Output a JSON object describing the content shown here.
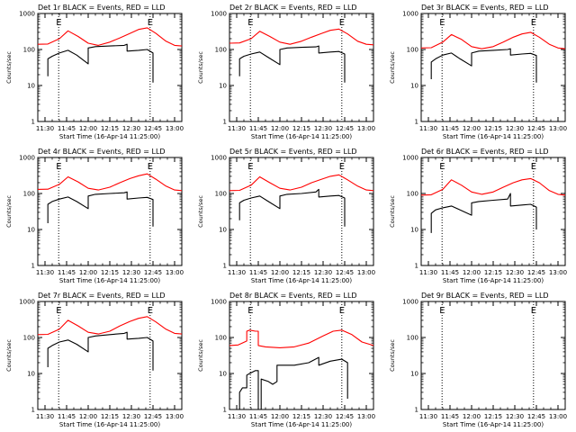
{
  "figure": {
    "ylabel": "Counts/sec",
    "xlabel": "Start Time (16-Apr-14 11:25:00)",
    "x_tick_labels": [
      "11:30",
      "11:45",
      "12:00",
      "12:15",
      "12:30",
      "12:45",
      "13:00"
    ],
    "y_tick_labels": [
      "1",
      "10",
      "100",
      "1000"
    ],
    "marker_label": "E",
    "colors": {
      "events": "#000000",
      "lld": "#ff0000",
      "frame": "#000000",
      "marker_line": "#000000"
    }
  },
  "chart_data": [
    {
      "type": "line",
      "title": "Det 1r BLACK = Events, RED = LLD",
      "xlabel": "Start Time (16-Apr-14 11:25:00)",
      "ylabel": "Counts/sec",
      "x_unit": "minutes after 11:25",
      "xlim": [
        0,
        100
      ],
      "ylim": [
        1,
        1000
      ],
      "yscale": "log",
      "x_ticks": [
        5,
        20,
        35,
        50,
        65,
        80,
        95
      ],
      "markers": [
        {
          "label": "E",
          "x": 14.5
        },
        {
          "label": "E",
          "x": 78
        }
      ],
      "series": [
        {
          "name": "LLD",
          "color": "red",
          "x": [
            0,
            7,
            15,
            21,
            28,
            35,
            42,
            50,
            57,
            64,
            70,
            76,
            82,
            89,
            95,
            100
          ],
          "y": [
            140,
            142,
            200,
            330,
            230,
            150,
            130,
            160,
            210,
            280,
            360,
            400,
            280,
            170,
            130,
            125
          ]
        },
        {
          "name": "Events",
          "color": "black",
          "x": [
            7,
            7,
            10,
            15,
            21,
            27,
            35,
            35,
            40,
            50,
            60,
            62,
            62,
            70,
            76,
            80,
            80
          ],
          "y": [
            18,
            55,
            65,
            80,
            95,
            70,
            40,
            110,
            120,
            125,
            130,
            140,
            90,
            95,
            100,
            80,
            12
          ]
        }
      ]
    },
    {
      "type": "line",
      "title": "Det 2r BLACK = Events, RED = LLD",
      "xlabel": "Start Time (16-Apr-14 11:25:00)",
      "ylabel": "Counts/sec",
      "x_unit": "minutes after 11:25",
      "xlim": [
        0,
        100
      ],
      "ylim": [
        1,
        1000
      ],
      "yscale": "log",
      "x_ticks": [
        5,
        20,
        35,
        50,
        65,
        80,
        95
      ],
      "markers": [
        {
          "label": "E",
          "x": 14.5
        },
        {
          "label": "E",
          "x": 78
        }
      ],
      "series": [
        {
          "name": "LLD",
          "color": "red",
          "x": [
            0,
            7,
            15,
            21,
            28,
            35,
            42,
            50,
            57,
            64,
            70,
            76,
            82,
            89,
            95,
            100
          ],
          "y": [
            150,
            152,
            200,
            320,
            230,
            160,
            140,
            170,
            220,
            280,
            340,
            370,
            270,
            170,
            140,
            135
          ]
        },
        {
          "name": "Events",
          "color": "black",
          "x": [
            7,
            7,
            10,
            15,
            21,
            27,
            35,
            35,
            40,
            50,
            60,
            62,
            62,
            70,
            76,
            80,
            80
          ],
          "y": [
            18,
            55,
            65,
            75,
            85,
            60,
            38,
            100,
            110,
            115,
            118,
            125,
            80,
            85,
            88,
            75,
            12
          ]
        }
      ]
    },
    {
      "type": "line",
      "title": "Det 3r BLACK = Events, RED = LLD",
      "xlabel": "Start Time (16-Apr-14 11:25:00)",
      "ylabel": "Counts/sec",
      "x_unit": "minutes after 11:25",
      "xlim": [
        0,
        100
      ],
      "ylim": [
        1,
        1000
      ],
      "yscale": "log",
      "x_ticks": [
        5,
        20,
        35,
        50,
        65,
        80,
        95
      ],
      "markers": [
        {
          "label": "E",
          "x": 14.5
        },
        {
          "label": "E",
          "x": 78
        }
      ],
      "series": [
        {
          "name": "LLD",
          "color": "red",
          "x": [
            0,
            7,
            15,
            21,
            28,
            35,
            42,
            50,
            57,
            64,
            70,
            76,
            82,
            89,
            95,
            100
          ],
          "y": [
            110,
            112,
            160,
            260,
            190,
            120,
            105,
            120,
            160,
            220,
            270,
            300,
            220,
            140,
            110,
            105
          ]
        },
        {
          "name": "Events",
          "color": "black",
          "x": [
            7,
            7,
            10,
            15,
            21,
            27,
            35,
            35,
            40,
            50,
            60,
            62,
            62,
            70,
            76,
            80,
            80
          ],
          "y": [
            15,
            45,
            55,
            70,
            80,
            55,
            35,
            80,
            90,
            95,
            100,
            105,
            70,
            75,
            78,
            68,
            12
          ]
        }
      ]
    },
    {
      "type": "line",
      "title": "Det 4r BLACK = Events, RED = LLD",
      "xlabel": "Start Time (16-Apr-14 11:25:00)",
      "ylabel": "Counts/sec",
      "x_unit": "minutes after 11:25",
      "xlim": [
        0,
        100
      ],
      "ylim": [
        1,
        1000
      ],
      "yscale": "log",
      "x_ticks": [
        5,
        20,
        35,
        50,
        65,
        80,
        95
      ],
      "markers": [
        {
          "label": "E",
          "x": 14.5
        },
        {
          "label": "E",
          "x": 78
        }
      ],
      "series": [
        {
          "name": "LLD",
          "color": "red",
          "x": [
            0,
            7,
            15,
            21,
            28,
            35,
            42,
            50,
            57,
            64,
            70,
            76,
            82,
            89,
            95,
            100
          ],
          "y": [
            130,
            132,
            180,
            290,
            210,
            140,
            125,
            150,
            200,
            260,
            310,
            350,
            250,
            160,
            125,
            120
          ]
        },
        {
          "name": "Events",
          "color": "black",
          "x": [
            7,
            7,
            10,
            15,
            21,
            27,
            35,
            35,
            40,
            50,
            60,
            62,
            62,
            70,
            76,
            80,
            80
          ],
          "y": [
            15,
            50,
            60,
            70,
            80,
            60,
            38,
            85,
            95,
            100,
            105,
            110,
            70,
            75,
            78,
            68,
            12
          ]
        }
      ]
    },
    {
      "type": "line",
      "title": "Det 5r BLACK = Events, RED = LLD",
      "xlabel": "Start Time (16-Apr-14 11:25:00)",
      "ylabel": "Counts/sec",
      "x_unit": "minutes after 11:25",
      "xlim": [
        0,
        100
      ],
      "ylim": [
        1,
        1000
      ],
      "yscale": "log",
      "x_ticks": [
        5,
        20,
        35,
        50,
        65,
        80,
        95
      ],
      "markers": [
        {
          "label": "E",
          "x": 14.5
        },
        {
          "label": "E",
          "x": 78
        }
      ],
      "series": [
        {
          "name": "LLD",
          "color": "red",
          "x": [
            0,
            7,
            15,
            21,
            28,
            35,
            42,
            50,
            57,
            64,
            70,
            76,
            82,
            89,
            95,
            100
          ],
          "y": [
            120,
            122,
            170,
            290,
            200,
            140,
            125,
            150,
            200,
            250,
            300,
            330,
            240,
            160,
            125,
            120
          ]
        },
        {
          "name": "Events",
          "color": "black",
          "x": [
            7,
            7,
            10,
            15,
            21,
            27,
            35,
            35,
            40,
            50,
            60,
            62,
            62,
            70,
            76,
            80,
            80
          ],
          "y": [
            18,
            55,
            65,
            75,
            85,
            60,
            38,
            85,
            95,
            100,
            110,
            130,
            80,
            85,
            88,
            75,
            12
          ]
        }
      ]
    },
    {
      "type": "line",
      "title": "Det 6r BLACK = Events, RED = LLD",
      "xlabel": "Start Time (16-Apr-14 11:25:00)",
      "ylabel": "Counts/sec",
      "x_unit": "minutes after 11:25",
      "xlim": [
        0,
        100
      ],
      "ylim": [
        1,
        1000
      ],
      "yscale": "log",
      "x_ticks": [
        5,
        20,
        35,
        50,
        65,
        80,
        95
      ],
      "markers": [
        {
          "label": "E",
          "x": 14.5
        },
        {
          "label": "E",
          "x": 78
        }
      ],
      "series": [
        {
          "name": "LLD",
          "color": "red",
          "x": [
            0,
            7,
            15,
            21,
            28,
            35,
            42,
            50,
            57,
            64,
            70,
            76,
            82,
            89,
            95,
            100
          ],
          "y": [
            90,
            92,
            130,
            240,
            170,
            110,
            95,
            110,
            150,
            200,
            240,
            260,
            200,
            120,
            95,
            90
          ]
        },
        {
          "name": "Events",
          "color": "black",
          "x": [
            7,
            7,
            10,
            15,
            21,
            27,
            35,
            35,
            40,
            50,
            60,
            62,
            62,
            70,
            76,
            80,
            80
          ],
          "y": [
            8,
            28,
            35,
            40,
            45,
            35,
            25,
            55,
            60,
            65,
            70,
            100,
            45,
            48,
            50,
            42,
            10
          ]
        }
      ]
    },
    {
      "type": "line",
      "title": "Det 7r BLACK = Events, RED = LLD",
      "xlabel": "Start Time (16-Apr-14 11:25:00)",
      "ylabel": "Counts/sec",
      "x_unit": "minutes after 11:25",
      "xlim": [
        0,
        100
      ],
      "ylim": [
        1,
        1000
      ],
      "yscale": "log",
      "x_ticks": [
        5,
        20,
        35,
        50,
        65,
        80,
        95
      ],
      "markers": [
        {
          "label": "E",
          "x": 14.5
        },
        {
          "label": "E",
          "x": 78
        }
      ],
      "series": [
        {
          "name": "LLD",
          "color": "red",
          "x": [
            0,
            7,
            15,
            21,
            28,
            35,
            42,
            50,
            57,
            64,
            70,
            76,
            82,
            89,
            95,
            100
          ],
          "y": [
            120,
            122,
            170,
            300,
            210,
            140,
            125,
            150,
            210,
            280,
            340,
            380,
            270,
            170,
            130,
            125
          ]
        },
        {
          "name": "Events",
          "color": "black",
          "x": [
            7,
            7,
            10,
            15,
            21,
            27,
            35,
            35,
            40,
            50,
            60,
            62,
            62,
            70,
            76,
            80,
            80
          ],
          "y": [
            15,
            50,
            60,
            75,
            85,
            65,
            40,
            100,
            110,
            120,
            130,
            140,
            90,
            95,
            100,
            80,
            12
          ]
        }
      ]
    },
    {
      "type": "line",
      "title": "Det 8r BLACK = Events, RED = LLD",
      "xlabel": "Start Time (16-Apr-14 11:25:00)",
      "ylabel": "Counts/sec",
      "x_unit": "minutes after 11:25",
      "xlim": [
        0,
        100
      ],
      "ylim": [
        1,
        1000
      ],
      "yscale": "log",
      "x_ticks": [
        5,
        20,
        35,
        50,
        65,
        80,
        95
      ],
      "markers": [
        {
          "label": "E",
          "x": 14.5
        },
        {
          "label": "E",
          "x": 78
        }
      ],
      "series": [
        {
          "name": "LLD",
          "color": "red",
          "x": [
            0,
            6,
            12,
            12,
            14,
            18,
            20,
            20,
            25,
            35,
            45,
            55,
            65,
            72,
            78,
            85,
            92,
            100
          ],
          "y": [
            60,
            62,
            80,
            150,
            160,
            150,
            150,
            60,
            55,
            52,
            55,
            70,
            110,
            150,
            160,
            120,
            75,
            60
          ]
        },
        {
          "name": "Events",
          "color": "black",
          "x": [
            7,
            7,
            9,
            12,
            12,
            14,
            18,
            20,
            20,
            22,
            22,
            27,
            30,
            33,
            33,
            45,
            55,
            62,
            62,
            70,
            78,
            82,
            82
          ],
          "y": [
            1,
            3,
            4,
            4,
            9,
            10,
            12,
            12,
            1,
            1,
            7,
            6,
            5,
            6,
            17,
            17,
            20,
            28,
            17,
            22,
            25,
            20,
            2
          ]
        }
      ]
    },
    {
      "type": "line",
      "title": "Det 9r BLACK = Events, RED = LLD",
      "xlabel": "Start Time (16-Apr-14 11:25:00)",
      "ylabel": "Counts/sec",
      "x_unit": "minutes after 11:25",
      "xlim": [
        0,
        100
      ],
      "ylim": [
        1,
        1000
      ],
      "yscale": "log",
      "x_ticks": [
        5,
        20,
        35,
        50,
        65,
        80,
        95
      ],
      "markers": [
        {
          "label": "E",
          "x": 14.5
        },
        {
          "label": "E",
          "x": 78
        }
      ],
      "series": []
    }
  ]
}
